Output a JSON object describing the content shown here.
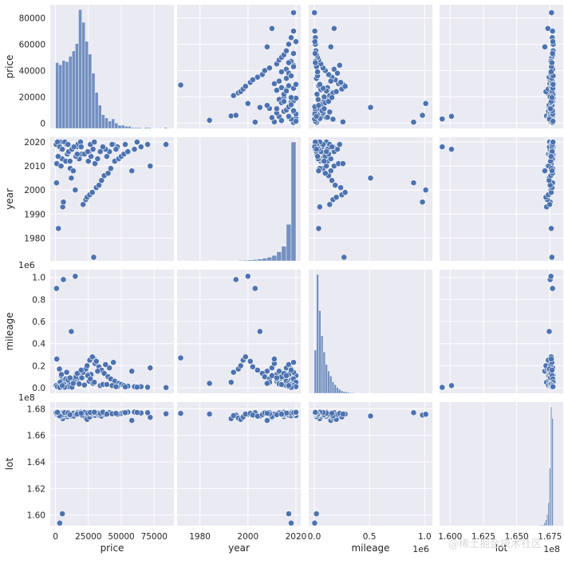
{
  "chart_data": {
    "type": "pairplot",
    "variables": [
      "price",
      "year",
      "mileage",
      "lot"
    ],
    "style": {
      "panel_bg": "#eaeaf2",
      "grid": "#ffffff",
      "marker": "#4c72b0",
      "marker_edge": "#ffffff",
      "grid_on": true
    },
    "axes": {
      "price": {
        "label": "price",
        "lim": [
          -4000,
          90000
        ],
        "ticks": [
          0,
          25000,
          50000,
          75000
        ],
        "ticklabels": [
          "0",
          "25000",
          "50000",
          "75000"
        ],
        "y_ticks": [
          0,
          20000,
          40000,
          60000,
          80000
        ],
        "y_ticklabels": [
          "0",
          "20000",
          "40000",
          "60000",
          "80000"
        ],
        "offset_label": ""
      },
      "year": {
        "label": "year",
        "lim": [
          1970.5,
          2022
        ],
        "ticks": [
          1980,
          2000,
          2020
        ],
        "ticklabels": [
          "1980",
          "2000",
          "2020"
        ],
        "y_ticks": [
          1980,
          1990,
          2000,
          2010,
          2020
        ],
        "y_ticklabels": [
          "1980",
          "1990",
          "2000",
          "2010",
          "2020"
        ],
        "offset_label": ""
      },
      "mileage": {
        "label": "mileage",
        "lim": [
          -0.05,
          1.07
        ],
        "ticks": [
          0.0,
          0.5,
          1.0
        ],
        "ticklabels": [
          "0.0",
          "0.5",
          "1.0"
        ],
        "y_ticks": [
          0.0,
          0.2,
          0.4,
          0.6,
          0.8,
          1.0
        ],
        "y_ticklabels": [
          "0.0",
          "0.2",
          "0.4",
          "0.6",
          "0.8",
          "1.0"
        ],
        "offset_label": "1e6"
      },
      "lot": {
        "label": "lot",
        "lim": [
          1.592,
          1.685
        ],
        "ticks": [
          1.6,
          1.625,
          1.65,
          1.675
        ],
        "ticklabels": [
          "1.600",
          "1.625",
          "1.650",
          "1.675"
        ],
        "y_ticks": [
          1.6,
          1.62,
          1.64,
          1.66,
          1.68
        ],
        "y_ticklabels": [
          "1.60",
          "1.62",
          "1.64",
          "1.66",
          "1.68"
        ],
        "offset_label": "1e8"
      }
    },
    "histograms": {
      "price": {
        "bin_edges": [
          0,
          2500,
          5000,
          7500,
          10000,
          12500,
          15000,
          17500,
          20000,
          22500,
          25000,
          27500,
          30000,
          32500,
          35000,
          37500,
          40000,
          42500,
          45000,
          47500,
          50000,
          52500,
          55000,
          57500,
          60000,
          62500,
          65000,
          67500,
          70000,
          72500,
          75000,
          77500,
          80000,
          82500,
          85000
        ],
        "counts": [
          62,
          60,
          64,
          63,
          68,
          73,
          80,
          112,
          100,
          82,
          70,
          52,
          34,
          22,
          13,
          10,
          7,
          9,
          5,
          3,
          3,
          2,
          2,
          1,
          1,
          1,
          0,
          1,
          1,
          0,
          0,
          0,
          0,
          1
        ]
      },
      "year": {
        "bin_edges": [
          1972,
          1974,
          1976,
          1978,
          1980,
          1982,
          1984,
          1986,
          1988,
          1990,
          1992,
          1994,
          1996,
          1998,
          2000,
          2002,
          2004,
          2006,
          2008,
          2010,
          2012,
          2014,
          2016,
          2018,
          2020
        ],
        "counts": [
          1,
          0,
          0,
          0,
          0,
          0,
          1,
          0,
          0,
          0,
          0,
          2,
          3,
          4,
          5,
          7,
          10,
          14,
          20,
          30,
          50,
          80,
          200,
          650
        ]
      },
      "mileage": {
        "bin_edges": [
          0,
          0.02,
          0.04,
          0.06,
          0.08,
          0.1,
          0.12,
          0.14,
          0.16,
          0.18,
          0.2,
          0.22,
          0.24,
          0.26,
          0.28,
          0.3,
          0.32,
          0.34,
          0.36,
          0.38,
          0.4,
          0.42,
          0.44,
          0.46,
          0.48,
          0.5,
          0.52
        ],
        "counts": [
          120,
          330,
          230,
          160,
          115,
          80,
          62,
          48,
          32,
          24,
          16,
          11,
          7,
          5,
          4,
          3,
          2,
          2,
          1,
          1,
          1,
          0,
          0,
          0,
          0,
          1
        ]
      },
      "lot": {
        "bin_edges": [
          1.6675,
          1.6685,
          1.6695,
          1.6705,
          1.6715,
          1.6725,
          1.6735,
          1.6745,
          1.6755,
          1.6765,
          1.6775
        ],
        "counts": [
          5,
          3,
          6,
          15,
          30,
          60,
          120,
          300,
          620,
          560
        ]
      }
    },
    "points": {
      "price": [
        29000,
        2200,
        5500,
        6000,
        15000,
        800,
        12000,
        58000,
        72000,
        30000,
        25000,
        5000,
        2000,
        9000,
        10000,
        12500,
        16000,
        17000,
        19000,
        21000,
        23000,
        24000,
        26000,
        28000,
        31000,
        33000,
        35000,
        37000,
        40000,
        42000,
        45000,
        48000,
        50000,
        52000,
        55000,
        60000,
        65000,
        70000,
        84000,
        6500,
        3500,
        14000,
        20000,
        27000,
        32000,
        41000,
        38000,
        44000,
        1000,
        4200,
        7800,
        11200,
        13500,
        18000,
        22000,
        34000,
        47000,
        53000,
        62000,
        4500,
        8500,
        3000,
        15500,
        25500,
        28500,
        36000,
        43000,
        46000,
        7000,
        9500,
        11000,
        16500,
        19500,
        24500,
        26500,
        29500,
        39000,
        500,
        1500,
        3200,
        5200
      ],
      "year": [
        1972,
        1984,
        1993,
        1995,
        2000,
        2003,
        2005,
        2008,
        2010,
        2011,
        2012,
        2013,
        2014,
        2015,
        2016,
        2017,
        2018,
        2019,
        2020,
        1994,
        1996,
        1997,
        1998,
        1999,
        2001,
        2002,
        2004,
        2006,
        2007,
        2009,
        2012,
        2013,
        2014,
        2015,
        2016,
        2017,
        2018,
        2019,
        2019,
        2020,
        2020,
        2018,
        2015,
        2014,
        2013,
        2016,
        2017,
        2019,
        2011,
        2010,
        2012,
        2009,
        2008,
        2013,
        2015,
        2016,
        2018,
        2019,
        2020,
        2017,
        2019,
        2018,
        2014,
        2016,
        2017,
        2018,
        2019,
        2017,
        2020,
        2019,
        2012,
        2015,
        2018,
        2016,
        2019,
        2020,
        2014,
        2019,
        2020,
        2018,
        2017
      ],
      "mileage": [
        0.27,
        0.04,
        0.05,
        0.98,
        1.01,
        0.9,
        0.51,
        0.15,
        0.18,
        0.22,
        0.12,
        0.07,
        0.03,
        0.02,
        0.01,
        0.005,
        0.06,
        0.09,
        0.11,
        0.14,
        0.17,
        0.2,
        0.25,
        0.28,
        0.24,
        0.19,
        0.16,
        0.13,
        0.1,
        0.08,
        0.06,
        0.04,
        0.03,
        0.02,
        0.015,
        0.01,
        0.01,
        0.005,
        0.002,
        0.03,
        0.05,
        0.07,
        0.09,
        0.12,
        0.15,
        0.18,
        0.21,
        0.23,
        0.26,
        0.11,
        0.08,
        0.05,
        0.04,
        0.035,
        0.025,
        0.02,
        0.01,
        0.008,
        0.006,
        0.12,
        0.14,
        0.17,
        0.1,
        0.06,
        0.04,
        0.03,
        0.02,
        0.01,
        0.005,
        0.07,
        0.09,
        0.13,
        0.16,
        0.11,
        0.08,
        0.05,
        0.03,
        0.02,
        0.01,
        0.004,
        0.02
      ],
      "lot": [
        1.6765,
        1.676,
        1.6725,
        1.6752,
        1.6758,
        1.677,
        1.6745,
        1.6712,
        1.6735,
        1.675,
        1.6762,
        1.6768,
        1.6772,
        1.674,
        1.6755,
        1.6765,
        1.677,
        1.6773,
        1.6775,
        1.6748,
        1.673,
        1.672,
        1.6738,
        1.676,
        1.6766,
        1.6752,
        1.6744,
        1.6756,
        1.6769,
        1.6771,
        1.6762,
        1.6758,
        1.6764,
        1.6772,
        1.6774,
        1.6775,
        1.6768,
        1.677,
        1.6762,
        1.6759,
        1.6748,
        1.6744,
        1.6752,
        1.6763,
        1.6767,
        1.6771,
        1.6757,
        1.6765,
        1.676,
        1.6742,
        1.6754,
        1.6761,
        1.6766,
        1.6769,
        1.6773,
        1.6764,
        1.6758,
        1.677,
        1.6772,
        1.6751,
        1.6763,
        1.6747,
        1.6756,
        1.6768,
        1.6771,
        1.6774,
        1.6762,
        1.6765,
        1.6771,
        1.6769,
        1.6755,
        1.676,
        1.6766,
        1.6767,
        1.6772,
        1.6774,
        1.6759,
        1.677,
        1.6773,
        1.594,
        1.601
      ]
    }
  },
  "watermark": "@稀土掘金技术社区"
}
